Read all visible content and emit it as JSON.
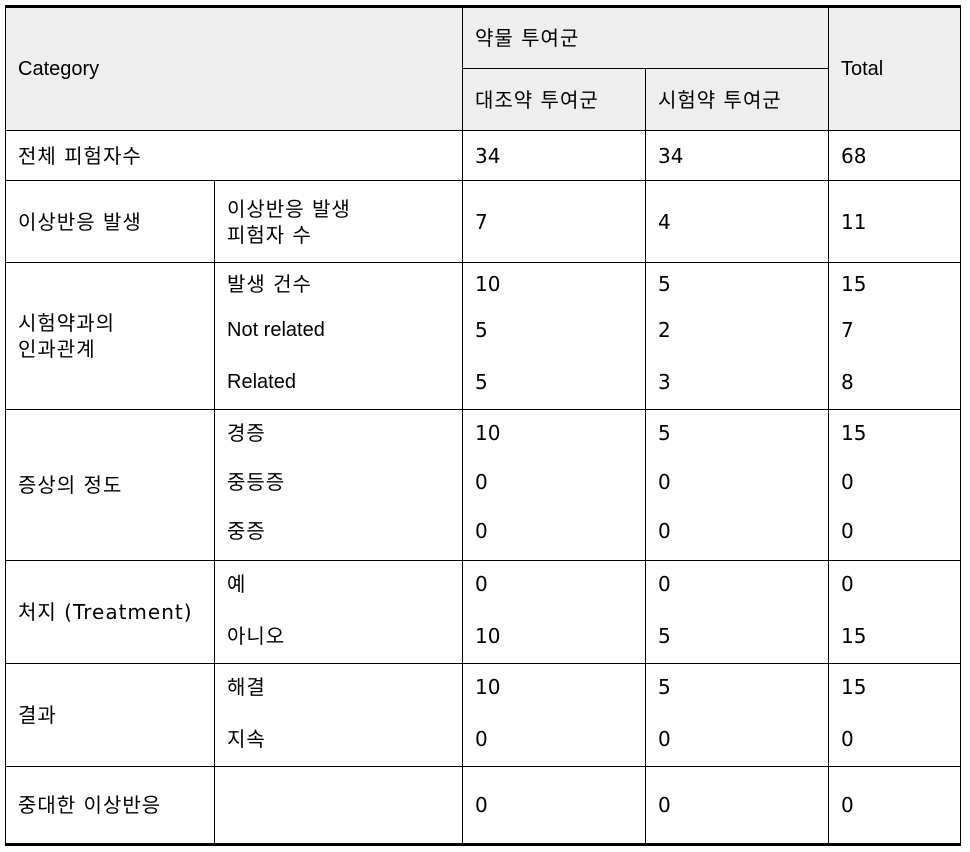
{
  "header": {
    "category": "Category",
    "group": "약물 투여군",
    "control": "대조약 투여군",
    "test": "시험약 투여군",
    "total": "Total"
  },
  "rows": {
    "total_subjects": {
      "label": "전체 피험자수",
      "control": "34",
      "test": "34",
      "total": "68"
    },
    "ae_occurrence": {
      "label": "이상반응 발생",
      "sub_line1": "이상반응 발생",
      "sub_line2": "피험자 수",
      "control": "7",
      "test": "4",
      "total": "11"
    },
    "causality": {
      "label_line1": "시험약과의",
      "label_line2": "인과관계",
      "items": [
        {
          "label": "발생 건수",
          "control": "10",
          "test": "5",
          "total": "15"
        },
        {
          "label": "Not related",
          "control": "5",
          "test": "2",
          "total": "7"
        },
        {
          "label": "Related",
          "control": "5",
          "test": "3",
          "total": "8"
        }
      ]
    },
    "severity": {
      "label": "증상의 정도",
      "items": [
        {
          "label": "경증",
          "control": "10",
          "test": "5",
          "total": "15"
        },
        {
          "label": "중등증",
          "control": "0",
          "test": "0",
          "total": "0"
        },
        {
          "label": "중증",
          "control": "0",
          "test": "0",
          "total": "0"
        }
      ]
    },
    "treatment": {
      "label": "처지 (Treatment)",
      "items": [
        {
          "label": "예",
          "control": "0",
          "test": "0",
          "total": "0"
        },
        {
          "label": "아니오",
          "control": "10",
          "test": "5",
          "total": "15"
        }
      ]
    },
    "outcome": {
      "label": "결과",
      "items": [
        {
          "label": "해결",
          "control": "10",
          "test": "5",
          "total": "15"
        },
        {
          "label": "지속",
          "control": "0",
          "test": "0",
          "total": "0"
        }
      ]
    },
    "serious_ae": {
      "label": "중대한 이상반응",
      "control": "0",
      "test": "0",
      "total": "0"
    }
  }
}
